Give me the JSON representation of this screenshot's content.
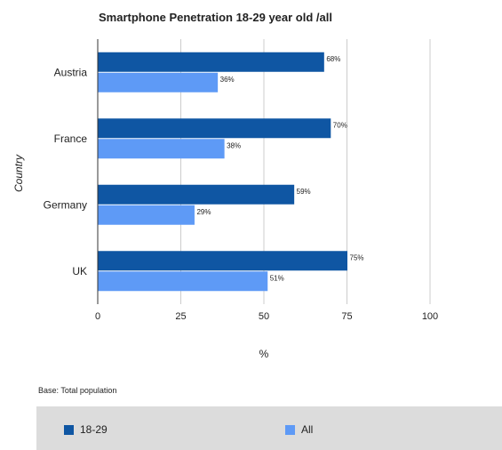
{
  "chart_data": {
    "type": "bar",
    "orientation": "horizontal",
    "title": "Smartphone Penetration 18-29 year old /all",
    "categories": [
      "Austria",
      "France",
      "Germany",
      "UK"
    ],
    "series": [
      {
        "name": "18-29",
        "values": [
          68,
          70,
          59,
          75
        ],
        "labels": [
          "68%",
          "70%",
          "59%",
          "75%"
        ],
        "color": "#0f56a3"
      },
      {
        "name": "All",
        "values": [
          36,
          38,
          29,
          51
        ],
        "labels": [
          "36%",
          "38%",
          "29%",
          "51%"
        ],
        "color": "#5e9af6"
      }
    ],
    "xlabel": "%",
    "ylabel": "Country",
    "xlim": [
      0,
      100
    ],
    "xticks": [
      0,
      25,
      50,
      75,
      100
    ],
    "xtick_labels": [
      "0",
      "25",
      "50",
      "75",
      "100"
    ],
    "grid": true,
    "legend_position": "bottom"
  },
  "footnote": "Base: Total population"
}
